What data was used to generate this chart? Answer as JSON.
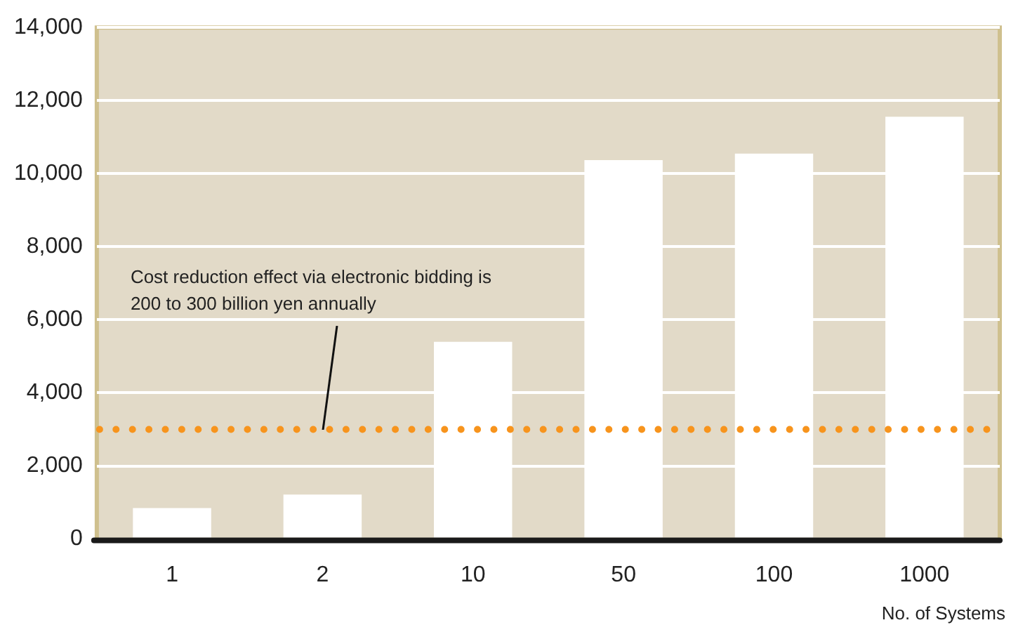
{
  "chart_data": {
    "type": "bar",
    "categories": [
      "1",
      "2",
      "10",
      "50",
      "100",
      "1000"
    ],
    "values": [
      850,
      1220,
      5400,
      10370,
      10550,
      11560
    ],
    "color": "#ffffff",
    "xlabel": "No. of Systems",
    "ylim": [
      0,
      14000
    ],
    "yticks": [
      0,
      {
        "value": 2000,
        "label": "2,000"
      },
      {
        "value": 4000,
        "label": "4,000"
      },
      {
        "value": 6000,
        "label": "6,000"
      },
      {
        "value": 8000,
        "label": "8,000"
      },
      {
        "value": 10000,
        "label": "10,000"
      },
      {
        "value": 12000,
        "label": "12,000"
      },
      {
        "value": 14000,
        "label": "14,000"
      }
    ],
    "grid": "y",
    "ref_lines": [
      {
        "axis": "y",
        "value": 3000,
        "color": "#f7941d",
        "line_style": "dotted"
      }
    ],
    "annotations": [
      {
        "text": "Cost reduction effect via electronic bidding is\n200 to 300 billion yen annually",
        "x": "2",
        "y": 3000
      }
    ]
  }
}
